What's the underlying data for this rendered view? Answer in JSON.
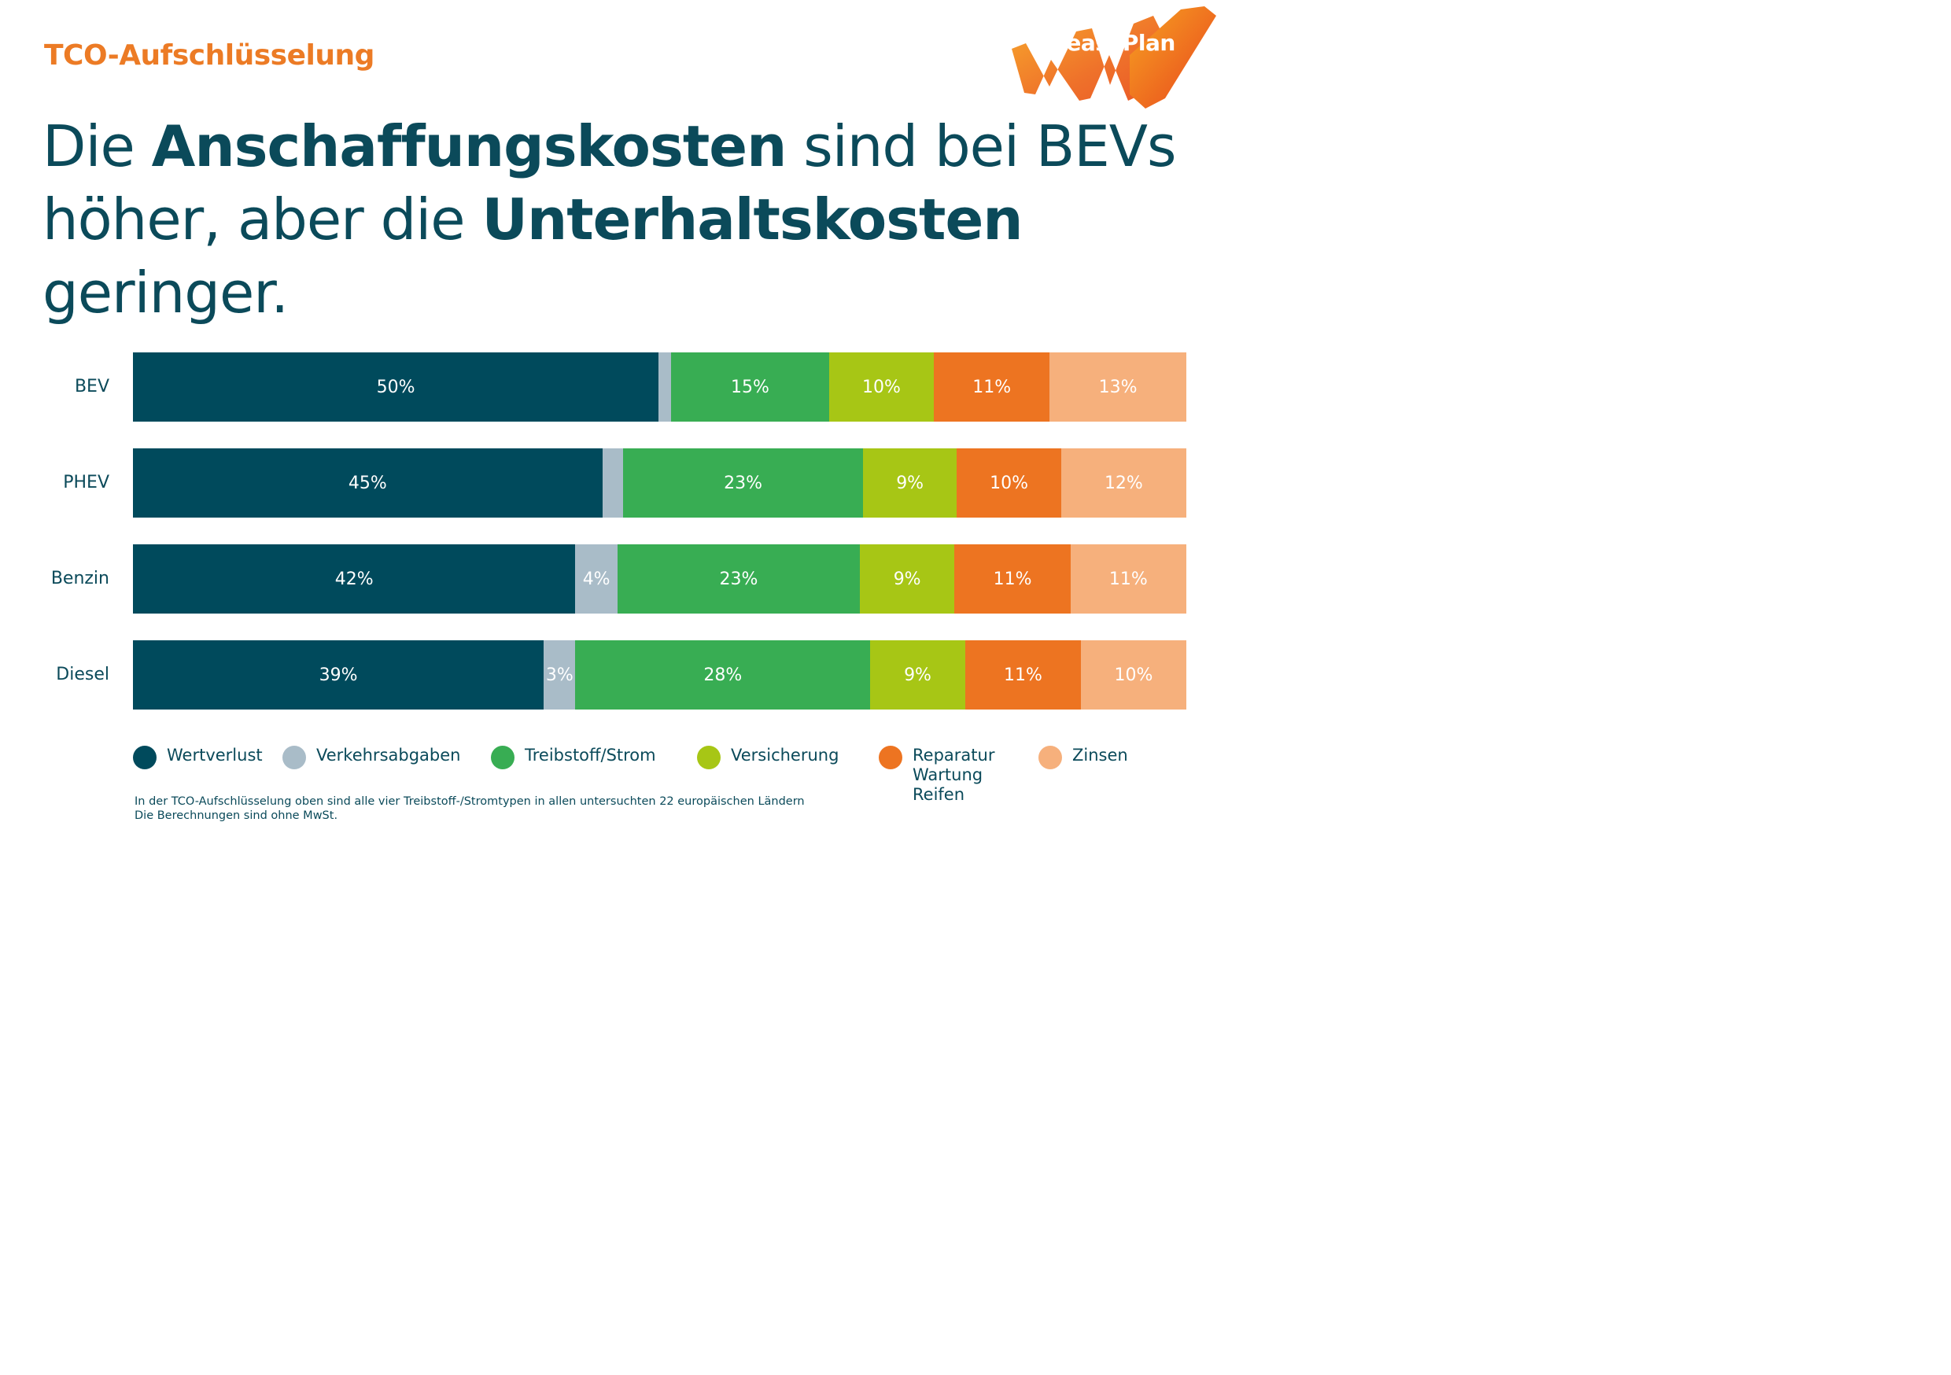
{
  "header": {
    "kicker": "TCO-Aufschlüsselung",
    "headline_parts": [
      {
        "text": "Die ",
        "bold": false
      },
      {
        "text": "Anschaffungskosten",
        "bold": true
      },
      {
        "text": " sind bei BEVs höher, aber die ",
        "bold": false
      },
      {
        "text": "Unterhaltskosten",
        "bold": true
      },
      {
        "text": " geringer.",
        "bold": false
      }
    ],
    "logo_text": "LeasePlan"
  },
  "chart_data": {
    "type": "bar",
    "orientation": "horizontal-stacked-100",
    "categories": [
      "BEV",
      "PHEV",
      "Benzin",
      "Diesel"
    ],
    "series": [
      {
        "name": "Wertverlust",
        "color": "#004a5c",
        "values": [
          50,
          45,
          42,
          39
        ],
        "labels": [
          "50%",
          "45%",
          "42%",
          "39%"
        ]
      },
      {
        "name": "Verkehrsabgaben",
        "color": "#a9bcc8",
        "values": [
          1.2,
          2,
          4,
          3
        ],
        "labels": [
          "",
          "",
          "4%",
          "3%"
        ]
      },
      {
        "name": "Treibstoff/Strom",
        "color": "#38ad53",
        "values": [
          15,
          23,
          23,
          28
        ],
        "labels": [
          "15%",
          "23%",
          "23%",
          "28%"
        ]
      },
      {
        "name": "Versicherung",
        "color": "#a7c615",
        "values": [
          10,
          9,
          9,
          9
        ],
        "labels": [
          "10%",
          "9%",
          "9%",
          "9%"
        ]
      },
      {
        "name": "Reparatur\nWartung\nReifen",
        "color": "#ed7421",
        "values": [
          11,
          10,
          11,
          11
        ],
        "labels": [
          "11%",
          "10%",
          "11%",
          "11%"
        ]
      },
      {
        "name": "Zinsen",
        "color": "#f6b07c",
        "values": [
          13,
          12,
          11,
          10
        ],
        "labels": [
          "13%",
          "12%",
          "11%",
          "10%"
        ]
      }
    ],
    "legend_position": "bottom"
  },
  "footnote": {
    "line1": "In der TCO-Aufschlüsselung oben sind alle vier Treibstoff-/Stromtypen in allen untersuchten 22 europäischen Ländern",
    "line2": "Die Berechnungen sind ohne MwSt."
  }
}
